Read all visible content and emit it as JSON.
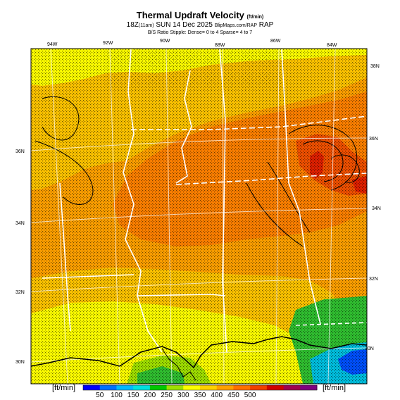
{
  "header": {
    "title": "Thermal Updraft Velocity",
    "title_units": "(ft/min)",
    "valid_time": "18Z",
    "valid_time_tag": "(11am)",
    "date": "SUN 14 Dec 2025",
    "credit": "BlipMaps.com/RAP",
    "model": "RAP",
    "stipple_note": "B/S Ratio Stipple: Dense= 0 to 4 Sparse= 4 to 7"
  },
  "axes": {
    "lon_labels": [
      "94W",
      "92W",
      "90W",
      "88W",
      "86W",
      "84W"
    ],
    "lat_labels_left": [
      "36N",
      "34N",
      "32N",
      "30N"
    ],
    "lat_labels_right": [
      "38N",
      "36N",
      "34N",
      "32N",
      "30N"
    ]
  },
  "legend": {
    "unit_left": "[ft/min]",
    "unit_right": "[ft/min]",
    "ticks": [
      "50",
      "100",
      "150",
      "200",
      "250",
      "300",
      "350",
      "400",
      "450",
      "500"
    ],
    "colors": [
      "#0000ff",
      "#0070ff",
      "#00b8ff",
      "#00e0e0",
      "#00c800",
      "#a0e000",
      "#ffff00",
      "#ffd000",
      "#ffa000",
      "#ff7000",
      "#f04000",
      "#d00000",
      "#a00050",
      "#800080"
    ]
  },
  "map_colors": {
    "yellow": "#ffff00",
    "light_orange": "#ffc400",
    "orange": "#ffa000",
    "dark_orange": "#ff8000",
    "red_orange": "#f05000",
    "red": "#e02000",
    "green": "#30c030",
    "light_green": "#a0e000",
    "cyan": "#00c0e0",
    "blue": "#0050ff"
  }
}
